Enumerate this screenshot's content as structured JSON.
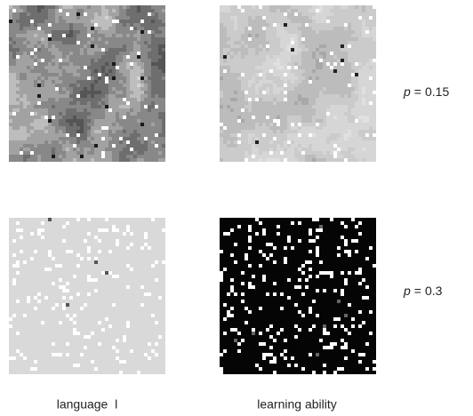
{
  "columns": [
    "language  l",
    "learning ability"
  ],
  "rows": [
    {
      "variable": "p",
      "relation": "=",
      "value": 0.15
    },
    {
      "variable": "p",
      "relation": "=",
      "value": 0.3
    }
  ]
}
